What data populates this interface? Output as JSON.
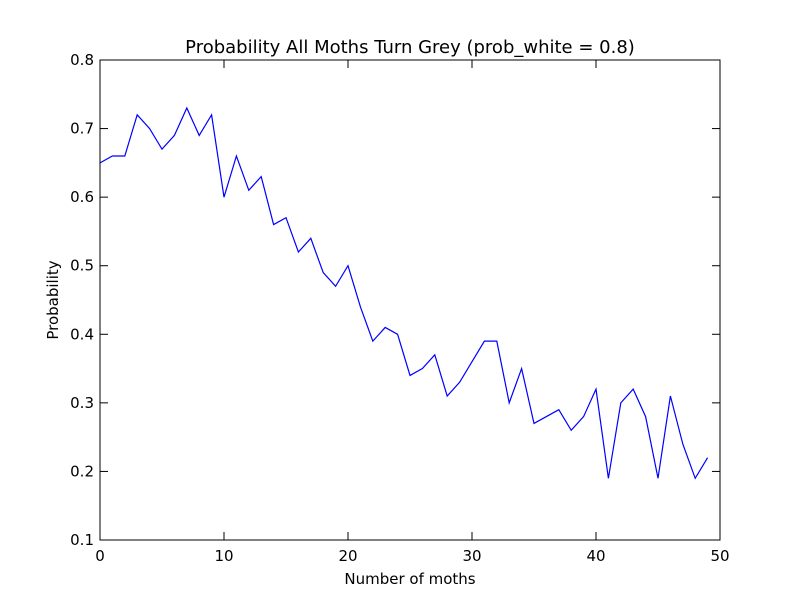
{
  "chart_data": {
    "type": "line",
    "title": "Probability All Moths Turn Grey (prob_white = 0.8)",
    "xlabel": "Number of moths",
    "ylabel": "Probability",
    "xlim": [
      0,
      50
    ],
    "ylim": [
      0.1,
      0.8
    ],
    "xticks": [
      "0",
      "10",
      "20",
      "30",
      "40",
      "50"
    ],
    "yticks": [
      "0.1",
      "0.2",
      "0.3",
      "0.4",
      "0.5",
      "0.6",
      "0.7",
      "0.8"
    ],
    "grid": false,
    "series": [
      {
        "color": "#0000ff",
        "x": [
          0,
          1,
          2,
          3,
          4,
          5,
          6,
          7,
          8,
          9,
          10,
          11,
          12,
          13,
          14,
          15,
          16,
          17,
          18,
          19,
          20,
          21,
          22,
          23,
          24,
          25,
          26,
          27,
          28,
          29,
          30,
          31,
          32,
          33,
          34,
          35,
          36,
          37,
          38,
          39,
          40,
          41,
          42,
          43,
          44,
          45,
          46,
          47,
          48,
          49
        ],
        "values": [
          0.65,
          0.66,
          0.66,
          0.72,
          0.7,
          0.67,
          0.69,
          0.73,
          0.69,
          0.72,
          0.6,
          0.66,
          0.61,
          0.63,
          0.56,
          0.57,
          0.52,
          0.54,
          0.49,
          0.47,
          0.5,
          0.44,
          0.39,
          0.41,
          0.4,
          0.34,
          0.35,
          0.37,
          0.31,
          0.33,
          0.36,
          0.39,
          0.39,
          0.3,
          0.35,
          0.27,
          0.28,
          0.29,
          0.26,
          0.28,
          0.32,
          0.19,
          0.3,
          0.32,
          0.28,
          0.19,
          0.31,
          0.24,
          0.19,
          0.22
        ]
      }
    ]
  }
}
